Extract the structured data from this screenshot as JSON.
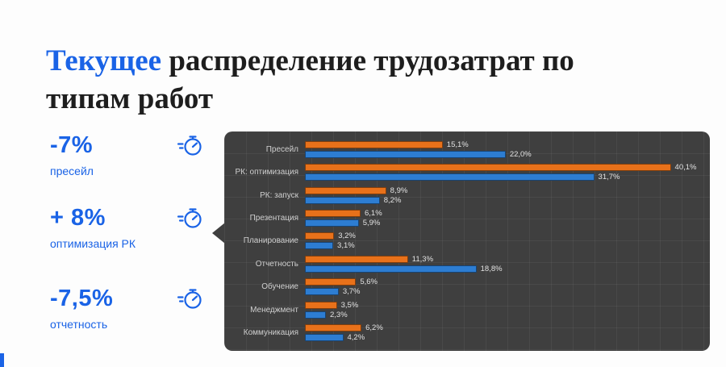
{
  "accent": "#1a63e6",
  "title": {
    "highlight": "Текущее",
    "rest": " распределение трудозатрат по типам работ"
  },
  "stats": [
    {
      "value": "-7%",
      "label": "пресейл"
    },
    {
      "value": "+ 8%",
      "label": "оптимизация РК"
    },
    {
      "value": "-7,5%",
      "label": "отчетность"
    }
  ],
  "chart_data": {
    "type": "bar",
    "orientation": "horizontal",
    "title": "",
    "xlabel": "",
    "ylabel": "",
    "xlim": [
      0,
      43.5
    ],
    "grid": true,
    "legend": "none",
    "panel_bg": "#3f3f3f",
    "categories": [
      "Пресейл",
      "РК: оптимизация",
      "РК: запуск",
      "Презентация",
      "Планирование",
      "Отчетность",
      "Обучение",
      "Менеджмент",
      "Коммуникация"
    ],
    "series": [
      {
        "name": "orange",
        "color": "#e8711a",
        "values": [
          15.1,
          40.1,
          8.9,
          6.1,
          3.2,
          11.3,
          5.6,
          3.5,
          6.2
        ],
        "labels": [
          "15,1%",
          "40,1%",
          "8,9%",
          "6,1%",
          "3,2%",
          "11,3%",
          "5,6%",
          "3,5%",
          "6,2%"
        ]
      },
      {
        "name": "blue",
        "color": "#2d7dd2",
        "values": [
          22.0,
          31.7,
          8.2,
          5.9,
          3.1,
          18.8,
          3.7,
          2.3,
          4.2
        ],
        "labels": [
          "22,0%",
          "31,7%",
          "8,2%",
          "5,9%",
          "3,1%",
          "18,8%",
          "3,7%",
          "2,3%",
          "4,2%"
        ]
      }
    ]
  }
}
